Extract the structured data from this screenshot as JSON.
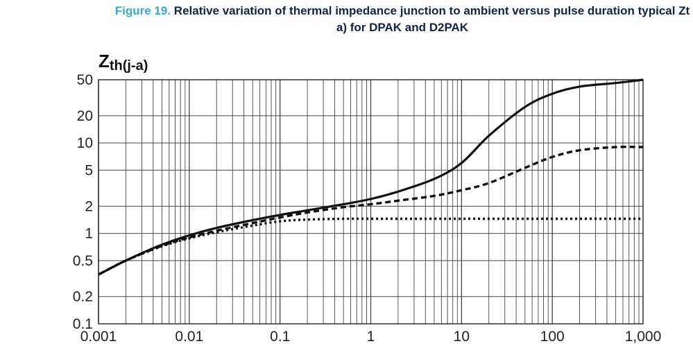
{
  "caption": {
    "figure_label": "Figure 19.",
    "line1": " Relative variation of thermal impedance junction to ambient versus pulse duration typical Zt",
    "line2": "a) for DPAK and D2PAK"
  },
  "chart_data": {
    "type": "line",
    "ylabel_main": "Z",
    "ylabel_sub": "th(j-a)",
    "xlabel": "",
    "x_scale": "log",
    "y_scale": "log",
    "xlim": [
      0.001,
      1000
    ],
    "ylim": [
      0.1,
      50
    ],
    "x_ticks": [
      {
        "value": 0.001,
        "label": "0.001"
      },
      {
        "value": 0.01,
        "label": "0.01"
      },
      {
        "value": 0.1,
        "label": "0.1"
      },
      {
        "value": 1,
        "label": "1"
      },
      {
        "value": 10,
        "label": "10"
      },
      {
        "value": 100,
        "label": "100"
      },
      {
        "value": 1000,
        "label": "1,000"
      }
    ],
    "y_ticks": [
      {
        "value": 0.1,
        "label": "0.1"
      },
      {
        "value": 0.2,
        "label": "0.2"
      },
      {
        "value": 0.5,
        "label": "0.5"
      },
      {
        "value": 1,
        "label": "1"
      },
      {
        "value": 2,
        "label": "2"
      },
      {
        "value": 5,
        "label": "5"
      },
      {
        "value": 10,
        "label": "10"
      },
      {
        "value": 20,
        "label": "20"
      },
      {
        "value": 50,
        "label": "50"
      }
    ],
    "grid": true,
    "series": [
      {
        "name": "solid",
        "style": "solid",
        "x": [
          0.001,
          0.002,
          0.005,
          0.01,
          0.02,
          0.05,
          0.1,
          0.2,
          0.5,
          1,
          2,
          5,
          10,
          20,
          50,
          100,
          200,
          500,
          1000
        ],
        "y": [
          0.35,
          0.5,
          0.75,
          0.95,
          1.15,
          1.4,
          1.6,
          1.8,
          2.1,
          2.4,
          2.9,
          4.0,
          6.0,
          12,
          25,
          35,
          42,
          46,
          50
        ]
      },
      {
        "name": "dashed",
        "style": "dashed",
        "x": [
          0.001,
          0.002,
          0.005,
          0.01,
          0.02,
          0.05,
          0.1,
          0.2,
          0.5,
          1,
          2,
          5,
          10,
          20,
          50,
          100,
          200,
          500,
          1000
        ],
        "y": [
          0.35,
          0.5,
          0.73,
          0.9,
          1.07,
          1.3,
          1.5,
          1.7,
          1.95,
          2.1,
          2.3,
          2.6,
          3.0,
          3.6,
          5.3,
          7.0,
          8.3,
          9.0,
          9.0
        ]
      },
      {
        "name": "dotted",
        "style": "dotted",
        "x": [
          0.001,
          0.002,
          0.005,
          0.01,
          0.02,
          0.05,
          0.1,
          0.2,
          0.5,
          1,
          2,
          5,
          10,
          20,
          50,
          100,
          200,
          500,
          1000
        ],
        "y": [
          0.35,
          0.5,
          0.72,
          0.88,
          1.03,
          1.22,
          1.36,
          1.42,
          1.45,
          1.45,
          1.45,
          1.45,
          1.45,
          1.45,
          1.45,
          1.45,
          1.45,
          1.45,
          1.45
        ]
      }
    ]
  }
}
